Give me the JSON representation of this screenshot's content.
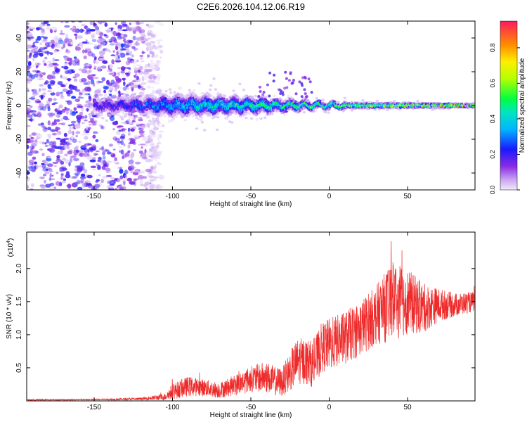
{
  "figure_title": "C2E6.2026.104.12.06.R19",
  "chart_data": [
    {
      "type": "heatmap",
      "title": "C2E6.2026.104.12.06.R19",
      "xlabel": "Height of straight line (km)",
      "ylabel": "Frequency (Hz)",
      "xlim": [
        -193,
        93
      ],
      "ylim": [
        -50,
        50
      ],
      "xticks": [
        -150,
        -100,
        -50,
        0,
        50
      ],
      "yticks": [
        -40,
        -20,
        0,
        20,
        40
      ],
      "colorbar": {
        "label": "Normalized spectral amplitude",
        "range": [
          0.0,
          0.95
        ],
        "ticks": [
          0.0,
          0.2,
          0.4,
          0.6,
          0.8
        ],
        "tick_labels": [
          "0.0",
          "0.2",
          "0.4",
          "0.6",
          "0.8"
        ]
      },
      "description_points": {
        "center_frequency_hz": 0,
        "noise_region_km": [
          -193,
          -115
        ],
        "band_halfwidth_hz": [
          [
            -115,
            6
          ],
          [
            -100,
            8
          ],
          [
            -50,
            6
          ],
          [
            -25,
            4
          ],
          [
            0,
            2
          ],
          [
            50,
            1.5
          ],
          [
            90,
            1
          ]
        ],
        "band_peak_amplitude": [
          [
            -145,
            0.2
          ],
          [
            -110,
            0.35
          ],
          [
            -80,
            0.45
          ],
          [
            -50,
            0.5
          ],
          [
            -25,
            0.55
          ],
          [
            0,
            0.6
          ],
          [
            30,
            0.7
          ],
          [
            60,
            0.8
          ],
          [
            75,
            0.95
          ],
          [
            90,
            0.9
          ]
        ]
      }
    },
    {
      "type": "line",
      "title": "",
      "xlabel": "Height of straight line (km)",
      "ylabel": "SNR (10 * v/v)",
      "y_multiplier": "(x10",
      "y_multiplier_exp": "4",
      "y_multiplier_close": ")",
      "xlim": [
        -193,
        93
      ],
      "ylim": [
        0,
        2.55
      ],
      "xticks": [
        -150,
        -100,
        -50,
        0,
        50
      ],
      "yticks": [
        0.5,
        1.0,
        1.5,
        2.0
      ],
      "ytick_labels": [
        "0.5",
        "1.0",
        "1.5",
        "2.0"
      ],
      "color": "#ee2a2a",
      "series": [
        {
          "name": "SNR",
          "envelope_x": [
            -193,
            -150,
            -120,
            -105,
            -100,
            -90,
            -80,
            -70,
            -60,
            -50,
            -40,
            -35,
            -30,
            -25,
            -20,
            -15,
            -10,
            -5,
            0,
            10,
            20,
            30,
            40,
            50,
            60,
            70,
            80,
            93
          ],
          "envelope_mean": [
            0.015,
            0.02,
            0.03,
            0.06,
            0.14,
            0.22,
            0.2,
            0.16,
            0.24,
            0.33,
            0.36,
            0.3,
            0.28,
            0.45,
            0.6,
            0.6,
            0.55,
            0.8,
            0.85,
            0.95,
            1.1,
            1.3,
            1.5,
            1.5,
            1.4,
            1.45,
            1.45,
            1.5
          ],
          "envelope_spread": [
            0.01,
            0.01,
            0.02,
            0.05,
            0.12,
            0.15,
            0.13,
            0.12,
            0.16,
            0.2,
            0.24,
            0.22,
            0.22,
            0.3,
            0.35,
            0.35,
            0.35,
            0.38,
            0.4,
            0.4,
            0.42,
            0.45,
            0.6,
            0.5,
            0.38,
            0.25,
            0.18,
            0.15
          ]
        }
      ]
    }
  ]
}
